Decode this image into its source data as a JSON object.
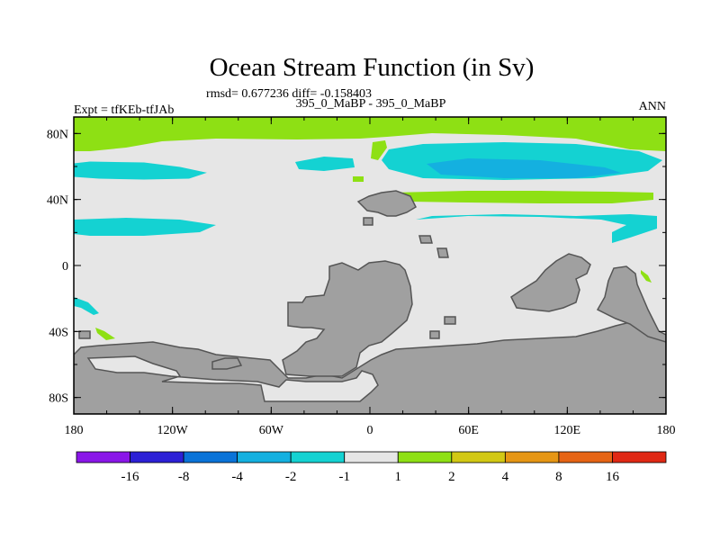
{
  "title": "Ocean Stream Function (in Sv)",
  "stats_line": "rmsd= 0.677236 diff= -0.158403",
  "subtitle": "395_0_MaBP - 395_0_MaBP",
  "left_label": "Expt = tfKEb-tfJAb",
  "right_label": "ANN",
  "chart_data": {
    "type": "contour_map",
    "variable": "Ocean Stream Function",
    "units": "Sv",
    "projection": "cylindrical equidistant",
    "lon_range": [
      -180,
      180
    ],
    "lat_range": [
      -90,
      90
    ],
    "x_tick_labels": [
      "180",
      "120W",
      "60W",
      "0",
      "60E",
      "120E",
      "180"
    ],
    "y_tick_labels": [
      "80N",
      "40N",
      "0",
      "40S",
      "80S"
    ],
    "y_tick_values": [
      80,
      40,
      0,
      -40,
      -80
    ],
    "colorbar": {
      "levels": [
        "-16",
        "-8",
        "-4",
        "-2",
        "-1",
        "1",
        "2",
        "4",
        "8",
        "16"
      ],
      "colors": [
        "#8a16e8",
        "#2c20d6",
        "#0a73d8",
        "#14b0e0",
        "#14d2d2",
        "#e6e6e6",
        "#8ee014",
        "#d2c814",
        "#e69614",
        "#e66414",
        "#e02814"
      ]
    },
    "land_color": "#a0a0a0",
    "ocean_color": "#e6e6e6"
  }
}
